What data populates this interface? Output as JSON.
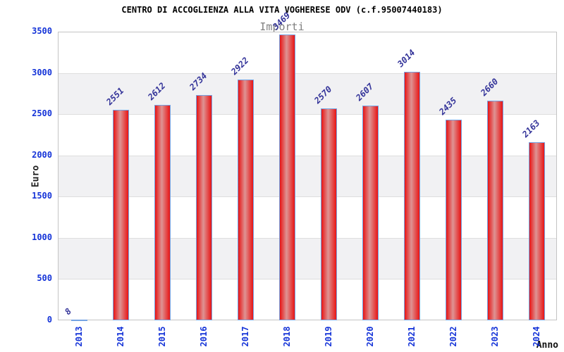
{
  "chart_data": {
    "type": "bar",
    "title": "CENTRO DI ACCOGLIENZA ALLA VITA VOGHERESE ODV (c.f.95007440183)",
    "subtitle": "Importi",
    "xlabel": "Anno",
    "ylabel": "Euro",
    "categories": [
      "2013",
      "2014",
      "2015",
      "2016",
      "2017",
      "2018",
      "2019",
      "2020",
      "2021",
      "2022",
      "2023",
      "2024"
    ],
    "values": [
      8,
      2551,
      2612,
      2734,
      2922,
      3469,
      2570,
      2607,
      3014,
      2435,
      2660,
      2163
    ],
    "ylim": [
      0,
      3500
    ],
    "ytick_step": 500,
    "ytick_labels": [
      "0",
      "500",
      "1000",
      "1500",
      "2000",
      "2500",
      "3000",
      "3500"
    ],
    "grid": true,
    "legend_position": "none",
    "band_style": "alternating horizontal bands, gray on odd bands from top",
    "colors": {
      "bar_fill_edge": "#e81414",
      "bar_fill_center": "#de9494",
      "bar_border": "#74a3e3",
      "tick_label": "#1433d8",
      "value_label": "#333399",
      "band": "#f1f1f3",
      "gridline": "#dedede",
      "plot_border": "#c4c4c4",
      "title": "#000000",
      "subtitle": "#808080",
      "axis_title": "#222222"
    }
  }
}
